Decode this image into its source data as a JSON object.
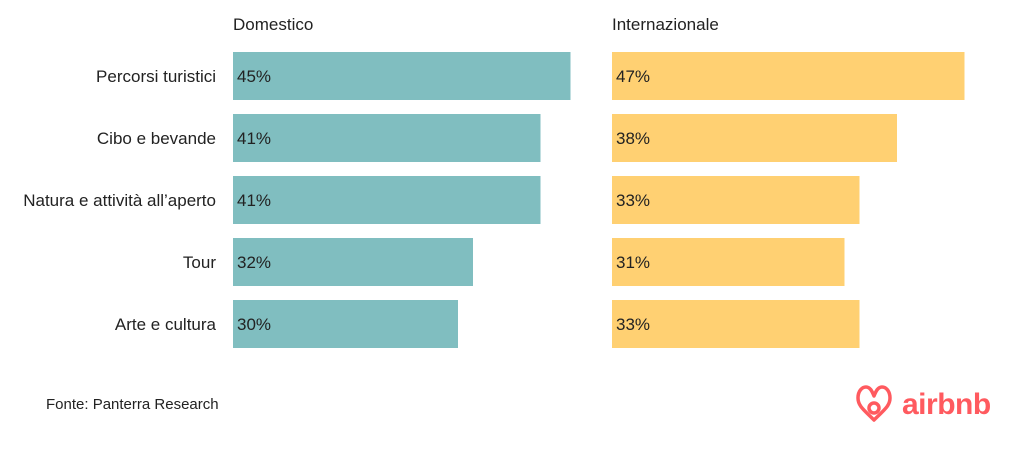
{
  "chart_data": {
    "type": "bar",
    "orientation": "horizontal",
    "categories": [
      "Percorsi turistici",
      "Cibo e bevande",
      "Natura e attività all’aperto",
      "Tour",
      "Arte e cultura"
    ],
    "value_suffix": "%",
    "xlim": [
      0,
      50
    ],
    "grid": false,
    "panels": [
      {
        "title": "Domestico",
        "color": "#80bec0",
        "values": [
          45,
          41,
          41,
          32,
          30
        ]
      },
      {
        "title": "Internazionale",
        "color": "#ffd072",
        "values": [
          47,
          38,
          33,
          31,
          33
        ]
      }
    ]
  },
  "footer": {
    "source": "Fonte: Panterra Research",
    "brand": {
      "name": "airbnb",
      "icon": "airbnb-belo-icon",
      "color": "#ff5a5f"
    }
  }
}
